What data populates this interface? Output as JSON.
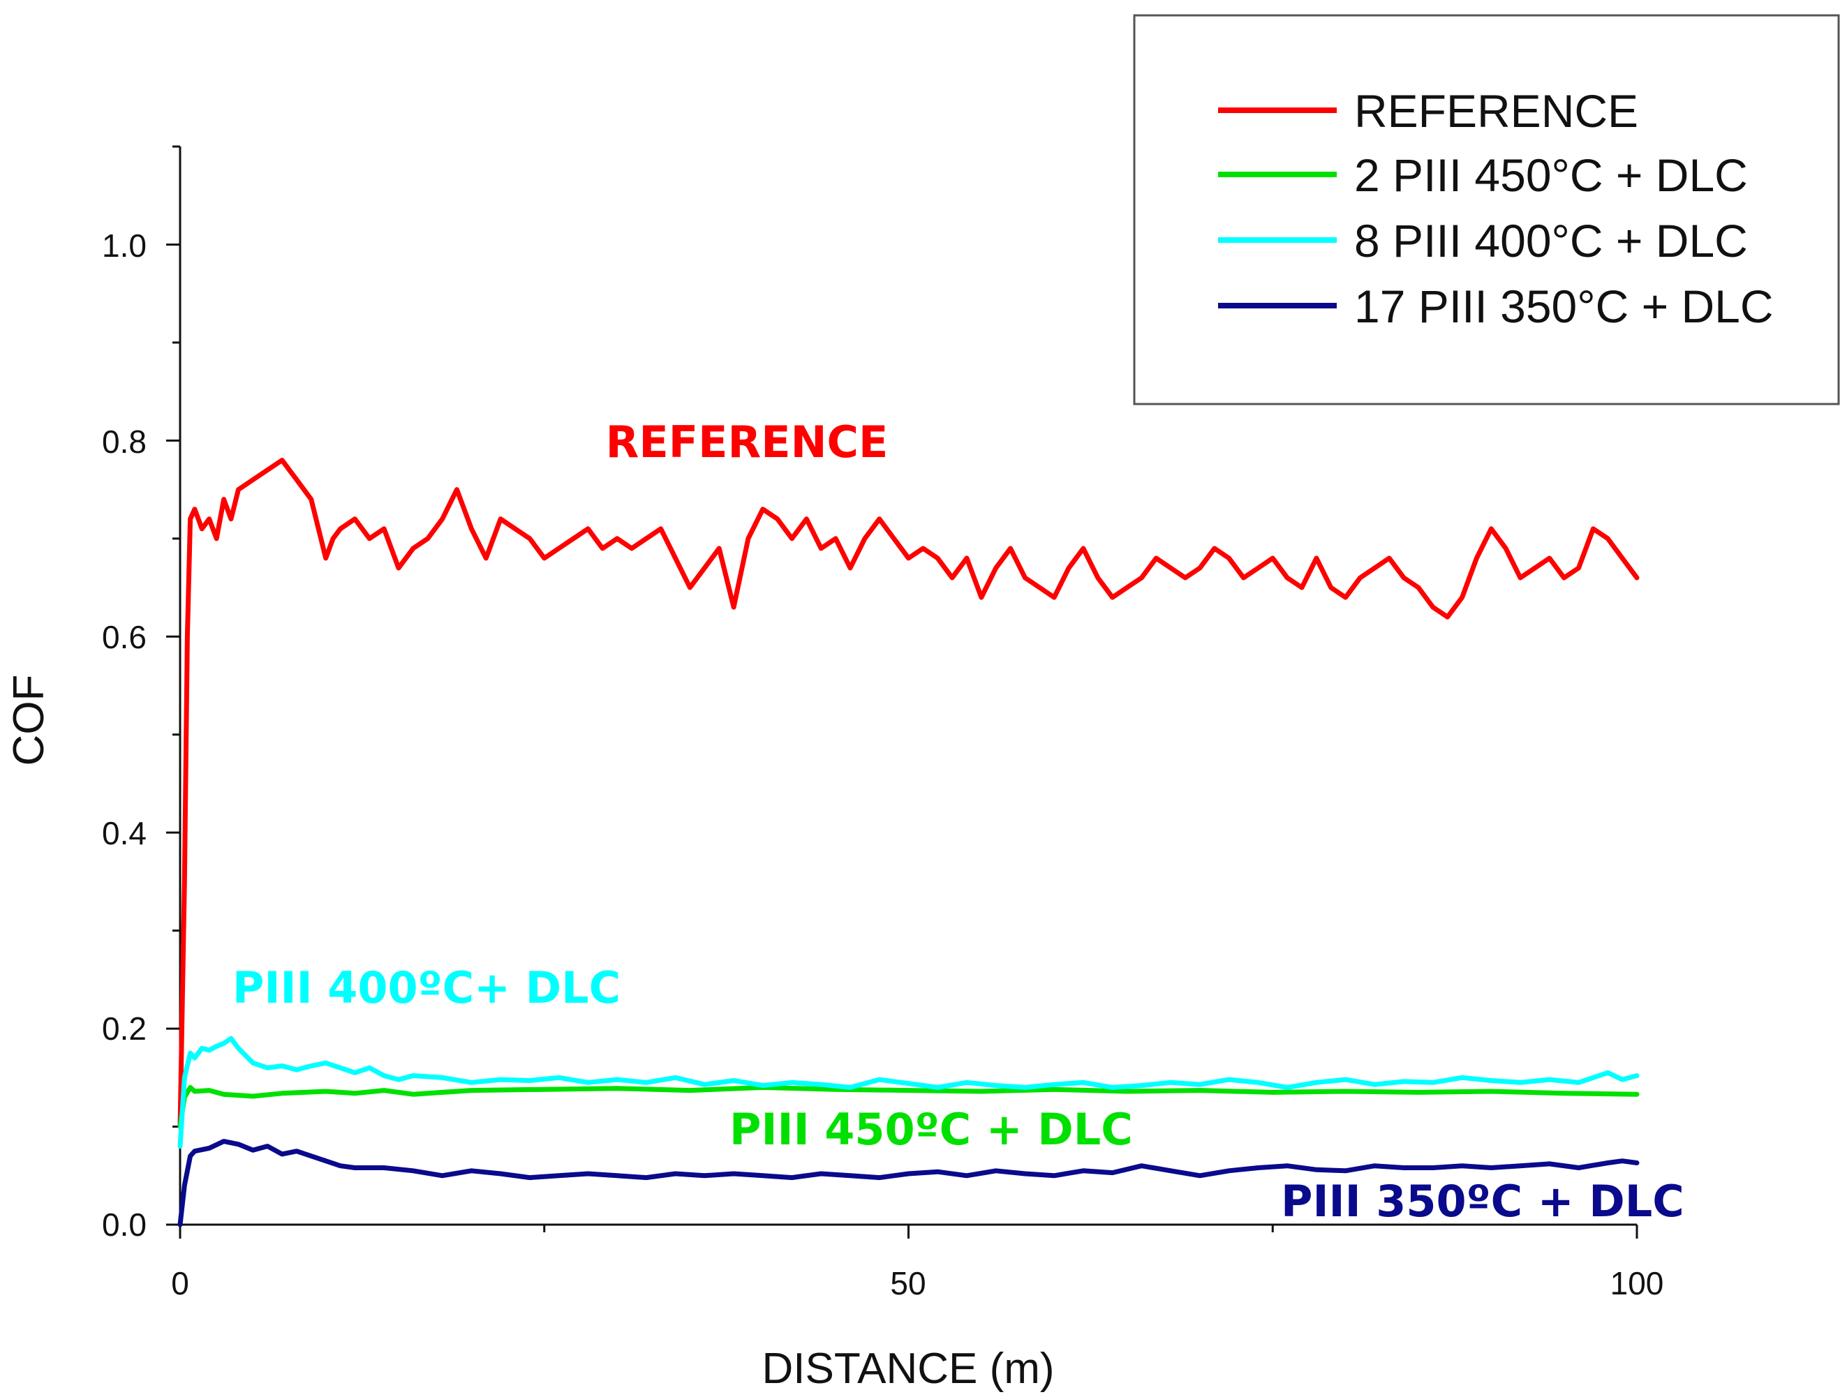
{
  "chart_data": {
    "type": "line",
    "title": "",
    "xlabel": "DISTANCE (m)",
    "ylabel": "COF",
    "xlim": [
      0,
      100
    ],
    "ylim": [
      0.0,
      1.1
    ],
    "x_ticks": [
      "0",
      "50",
      "100"
    ],
    "y_ticks": [
      "0.0",
      "0.2",
      "0.4",
      "0.6",
      "0.8",
      "1.0"
    ],
    "grid": false,
    "legend_position": "top-right",
    "series": [
      {
        "name": "REFERENCE",
        "color": "#ff0000",
        "x": [
          0,
          0.3,
          0.5,
          0.7,
          1,
          1.5,
          2,
          2.5,
          3,
          3.5,
          4,
          5,
          6,
          7,
          7.5,
          8,
          9,
          10,
          10.5,
          11,
          12,
          13,
          14,
          15,
          16,
          17,
          18,
          19,
          20,
          21,
          22,
          23,
          24,
          25,
          26,
          27,
          28,
          29,
          30,
          31,
          32,
          33,
          34,
          35,
          36,
          37,
          38,
          39,
          40,
          41,
          42,
          43,
          44,
          45,
          46,
          47,
          48,
          49,
          50,
          51,
          52,
          53,
          54,
          55,
          56,
          57,
          58,
          59,
          60,
          61,
          62,
          63,
          64,
          65,
          66,
          67,
          68,
          69,
          70,
          71,
          72,
          73,
          74,
          75,
          76,
          77,
          78,
          79,
          80,
          81,
          82,
          83,
          84,
          85,
          86,
          87,
          88,
          89,
          90,
          91,
          92,
          93,
          94,
          95,
          96,
          97,
          98,
          99,
          100
        ],
        "y": [
          0.1,
          0.35,
          0.6,
          0.72,
          0.73,
          0.71,
          0.72,
          0.7,
          0.74,
          0.72,
          0.75,
          0.76,
          0.77,
          0.78,
          0.77,
          0.76,
          0.74,
          0.68,
          0.7,
          0.71,
          0.72,
          0.7,
          0.71,
          0.67,
          0.69,
          0.7,
          0.72,
          0.75,
          0.71,
          0.68,
          0.72,
          0.71,
          0.7,
          0.68,
          0.69,
          0.7,
          0.71,
          0.69,
          0.7,
          0.69,
          0.7,
          0.71,
          0.68,
          0.65,
          0.67,
          0.69,
          0.63,
          0.7,
          0.73,
          0.72,
          0.7,
          0.72,
          0.69,
          0.7,
          0.67,
          0.7,
          0.72,
          0.7,
          0.68,
          0.69,
          0.68,
          0.66,
          0.68,
          0.64,
          0.67,
          0.69,
          0.66,
          0.65,
          0.64,
          0.67,
          0.69,
          0.66,
          0.64,
          0.65,
          0.66,
          0.68,
          0.67,
          0.66,
          0.67,
          0.69,
          0.68,
          0.66,
          0.67,
          0.68,
          0.66,
          0.65,
          0.68,
          0.65,
          0.64,
          0.66,
          0.67,
          0.68,
          0.66,
          0.65,
          0.63,
          0.62,
          0.64,
          0.68,
          0.71,
          0.69,
          0.66,
          0.67,
          0.68,
          0.66,
          0.67,
          0.71,
          0.7,
          0.68,
          0.66
        ]
      },
      {
        "name": "2 PIII 450°C + DLC",
        "color": "#00e000",
        "x": [
          0,
          0.3,
          0.7,
          1,
          2,
          3,
          5,
          7,
          10,
          12,
          14,
          16,
          18,
          20,
          25,
          30,
          35,
          40,
          45,
          50,
          55,
          60,
          65,
          70,
          75,
          80,
          85,
          90,
          95,
          100
        ],
        "y": [
          0.1,
          0.13,
          0.14,
          0.136,
          0.137,
          0.133,
          0.131,
          0.134,
          0.136,
          0.134,
          0.137,
          0.133,
          0.135,
          0.137,
          0.138,
          0.139,
          0.137,
          0.14,
          0.138,
          0.137,
          0.136,
          0.138,
          0.136,
          0.137,
          0.135,
          0.136,
          0.135,
          0.136,
          0.134,
          0.133
        ]
      },
      {
        "name": "8 PIII 400°C + DLC",
        "color": "#00ffff",
        "x": [
          0,
          0.3,
          0.7,
          1,
          1.5,
          2,
          2.5,
          3,
          3.5,
          4,
          5,
          6,
          7,
          8,
          9,
          10,
          11,
          12,
          13,
          14,
          15,
          16,
          18,
          20,
          22,
          24,
          26,
          28,
          30,
          32,
          34,
          36,
          38,
          40,
          42,
          44,
          46,
          48,
          50,
          52,
          54,
          56,
          58,
          60,
          62,
          64,
          66,
          68,
          70,
          72,
          74,
          76,
          78,
          80,
          82,
          84,
          86,
          88,
          90,
          92,
          94,
          96,
          98,
          99,
          100
        ],
        "y": [
          0.08,
          0.15,
          0.175,
          0.17,
          0.18,
          0.178,
          0.182,
          0.185,
          0.19,
          0.18,
          0.165,
          0.16,
          0.162,
          0.158,
          0.162,
          0.165,
          0.16,
          0.155,
          0.16,
          0.152,
          0.148,
          0.152,
          0.15,
          0.145,
          0.148,
          0.147,
          0.15,
          0.145,
          0.148,
          0.145,
          0.15,
          0.143,
          0.147,
          0.142,
          0.145,
          0.143,
          0.14,
          0.148,
          0.144,
          0.14,
          0.145,
          0.142,
          0.14,
          0.143,
          0.145,
          0.14,
          0.142,
          0.145,
          0.143,
          0.148,
          0.145,
          0.14,
          0.145,
          0.148,
          0.143,
          0.146,
          0.145,
          0.15,
          0.147,
          0.145,
          0.148,
          0.145,
          0.155,
          0.148,
          0.152
        ]
      },
      {
        "name": "17 PIII 350°C + DLC",
        "color": "#0a0a8c",
        "x": [
          0,
          0.3,
          0.7,
          1,
          2,
          3,
          4,
          5,
          6,
          7,
          8,
          9,
          10,
          11,
          12,
          14,
          16,
          18,
          20,
          22,
          24,
          26,
          28,
          30,
          32,
          34,
          36,
          38,
          40,
          42,
          44,
          46,
          48,
          50,
          52,
          54,
          56,
          58,
          60,
          62,
          64,
          66,
          68,
          70,
          72,
          74,
          76,
          78,
          80,
          82,
          84,
          86,
          88,
          90,
          92,
          94,
          96,
          98,
          99,
          100
        ],
        "y": [
          0.0,
          0.04,
          0.07,
          0.075,
          0.078,
          0.085,
          0.082,
          0.076,
          0.08,
          0.072,
          0.075,
          0.07,
          0.065,
          0.06,
          0.058,
          0.058,
          0.055,
          0.05,
          0.055,
          0.052,
          0.048,
          0.05,
          0.052,
          0.05,
          0.048,
          0.052,
          0.05,
          0.052,
          0.05,
          0.048,
          0.052,
          0.05,
          0.048,
          0.052,
          0.054,
          0.05,
          0.055,
          0.052,
          0.05,
          0.055,
          0.053,
          0.06,
          0.055,
          0.05,
          0.055,
          0.058,
          0.06,
          0.056,
          0.055,
          0.06,
          0.058,
          0.058,
          0.06,
          0.058,
          0.06,
          0.062,
          0.058,
          0.063,
          0.065,
          0.063
        ]
      }
    ],
    "annotations": [
      {
        "text": "REFERENCE",
        "color": "#ff0000"
      },
      {
        "text": "PIII 400ºC+ DLC",
        "color": "#00ffff"
      },
      {
        "text": "PIII 450ºC + DLC",
        "color": "#00e000"
      },
      {
        "text": "PIII 350ºC + DLC",
        "color": "#0a0a8c"
      }
    ]
  }
}
